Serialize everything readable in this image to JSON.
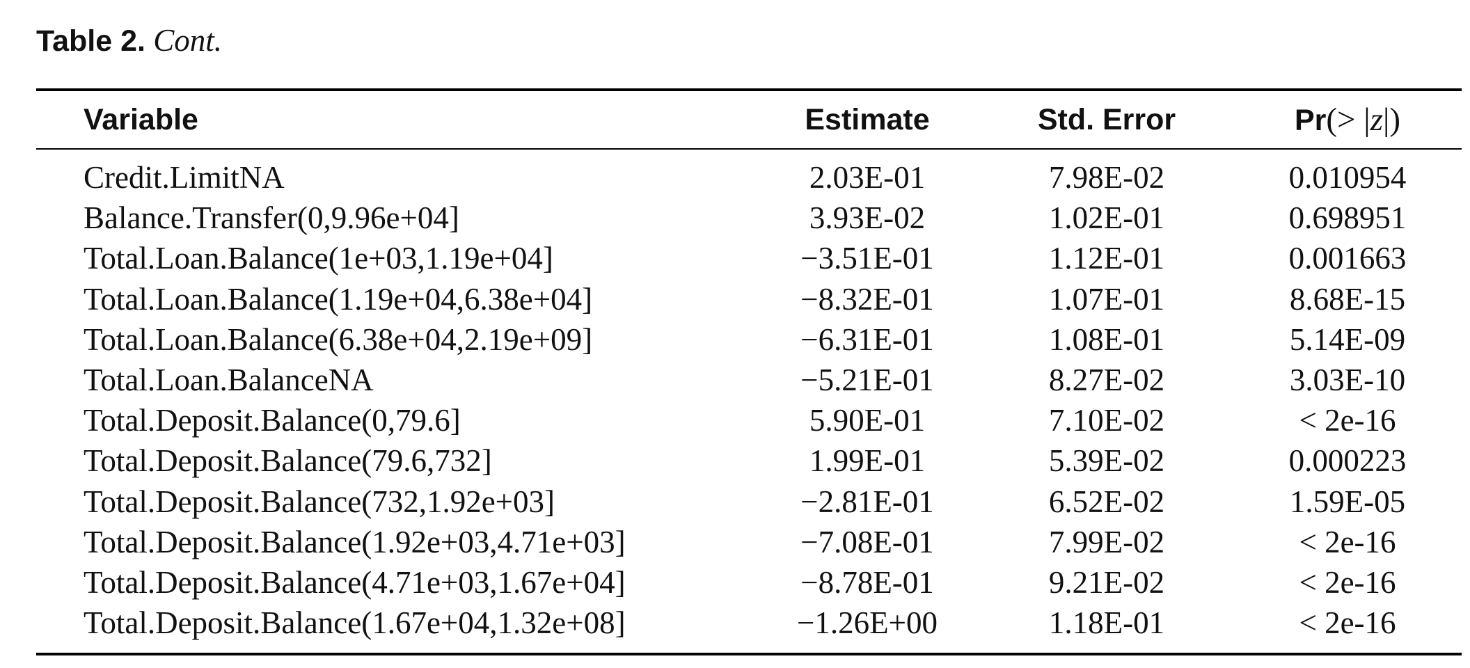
{
  "caption": {
    "label": "Table 2.",
    "suffix": "Cont."
  },
  "columns": {
    "variable": "Variable",
    "estimate": "Estimate",
    "std_error": "Std. Error",
    "p_value_prefix": "Pr",
    "p_value_open": "(> |",
    "p_value_var": "z",
    "p_value_close": "|)"
  },
  "rows": [
    {
      "variable": "Credit.LimitNA",
      "estimate": "2.03E-01",
      "std_error": "7.98E-02",
      "p_value": "0.010954"
    },
    {
      "variable": "Balance.Transfer(0,9.96e+04]",
      "estimate": "3.93E-02",
      "std_error": "1.02E-01",
      "p_value": "0.698951"
    },
    {
      "variable": "Total.Loan.Balance(1e+03,1.19e+04]",
      "estimate": "−3.51E-01",
      "std_error": "1.12E-01",
      "p_value": "0.001663"
    },
    {
      "variable": "Total.Loan.Balance(1.19e+04,6.38e+04]",
      "estimate": "−8.32E-01",
      "std_error": "1.07E-01",
      "p_value": "8.68E-15"
    },
    {
      "variable": "Total.Loan.Balance(6.38e+04,2.19e+09]",
      "estimate": "−6.31E-01",
      "std_error": "1.08E-01",
      "p_value": "5.14E-09"
    },
    {
      "variable": "Total.Loan.BalanceNA",
      "estimate": "−5.21E-01",
      "std_error": "8.27E-02",
      "p_value": "3.03E-10"
    },
    {
      "variable": "Total.Deposit.Balance(0,79.6]",
      "estimate": "5.90E-01",
      "std_error": "7.10E-02",
      "p_value": "< 2e-16"
    },
    {
      "variable": "Total.Deposit.Balance(79.6,732]",
      "estimate": "1.99E-01",
      "std_error": "5.39E-02",
      "p_value": "0.000223"
    },
    {
      "variable": "Total.Deposit.Balance(732,1.92e+03]",
      "estimate": "−2.81E-01",
      "std_error": "6.52E-02",
      "p_value": "1.59E-05"
    },
    {
      "variable": "Total.Deposit.Balance(1.92e+03,4.71e+03]",
      "estimate": "−7.08E-01",
      "std_error": "7.99E-02",
      "p_value": "< 2e-16"
    },
    {
      "variable": "Total.Deposit.Balance(4.71e+03,1.67e+04]",
      "estimate": "−8.78E-01",
      "std_error": "9.21E-02",
      "p_value": "< 2e-16"
    },
    {
      "variable": "Total.Deposit.Balance(1.67e+04,1.32e+08]",
      "estimate": "−1.26E+00",
      "std_error": "1.18E-01",
      "p_value": "< 2e-16"
    }
  ]
}
